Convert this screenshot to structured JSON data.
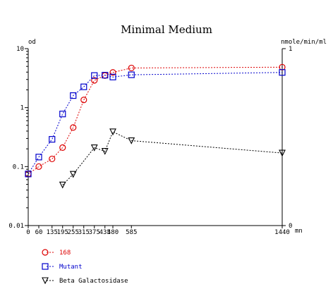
{
  "chart_data": {
    "type": "line",
    "title": "Minimal Medium",
    "x": {
      "unit": "mn",
      "range": [
        0,
        1440
      ],
      "ticks": [
        0,
        60,
        135,
        195,
        255,
        315,
        375,
        435,
        480,
        585,
        1440
      ],
      "tick_labels": [
        "0",
        "60",
        "135",
        "195",
        "255",
        "315",
        "375",
        "435",
        "480",
        "585",
        "1440"
      ]
    },
    "y_left": {
      "label": "od",
      "scale": "log",
      "range": [
        0.01,
        10
      ],
      "ticks": [
        0.01,
        0.1,
        1,
        10
      ],
      "tick_labels": [
        "0.01",
        "0.1",
        "1",
        "10"
      ]
    },
    "y_right": {
      "label": "nmole/min/ml",
      "scale": "linear",
      "range": [
        0,
        1
      ],
      "ticks": [
        0,
        1
      ],
      "tick_labels": [
        "0",
        "1"
      ]
    },
    "series": [
      {
        "name": "168",
        "axis": "left",
        "color": "#dd0000",
        "marker": "circle",
        "x": [
          0,
          60,
          135,
          195,
          255,
          315,
          375,
          435,
          480,
          585,
          1440
        ],
        "y": [
          0.075,
          0.1,
          0.135,
          0.21,
          0.46,
          1.35,
          2.9,
          3.5,
          3.95,
          4.7,
          4.85
        ]
      },
      {
        "name": "Mutant",
        "axis": "left",
        "color": "#0000cc",
        "marker": "square",
        "x": [
          0,
          60,
          135,
          195,
          255,
          315,
          375,
          435,
          480,
          585,
          1440
        ],
        "y": [
          0.075,
          0.145,
          0.29,
          0.78,
          1.6,
          2.25,
          3.5,
          3.55,
          3.3,
          3.6,
          3.95
        ]
      },
      {
        "name": "Beta Galactosidase",
        "axis": "right",
        "color": "#000000",
        "marker": "triangle-down",
        "x": [
          195,
          255,
          375,
          435,
          480,
          585,
          1440
        ],
        "y": [
          0.23,
          0.29,
          0.44,
          0.42,
          0.53,
          0.48,
          0.41
        ]
      }
    ],
    "legend_position": "bottom-left",
    "grid": false
  }
}
